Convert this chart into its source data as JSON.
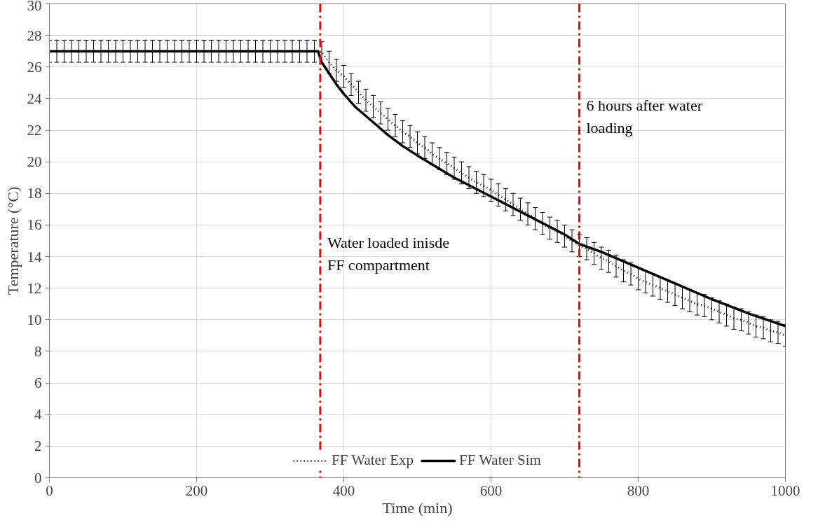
{
  "chart_data": {
    "type": "line",
    "xlabel": "Time (min)",
    "ylabel": "Temperature (°C)",
    "xlim": [
      0,
      1000
    ],
    "xticks": [
      0,
      200,
      400,
      600,
      800,
      1000
    ],
    "ylim": [
      0,
      30
    ],
    "yticks": [
      0,
      2,
      4,
      6,
      8,
      10,
      12,
      14,
      16,
      18,
      20,
      22,
      24,
      26,
      28,
      30
    ],
    "grid": true,
    "legend": "bottom",
    "series": [
      {
        "name": "FF Water Exp",
        "color": "#000000",
        "line_style": "dotted",
        "marker": "none",
        "x": [
          0,
          10,
          20,
          30,
          40,
          50,
          60,
          70,
          80,
          90,
          100,
          110,
          120,
          130,
          140,
          150,
          160,
          170,
          180,
          190,
          200,
          210,
          220,
          230,
          240,
          250,
          260,
          270,
          280,
          290,
          300,
          310,
          320,
          330,
          340,
          350,
          360,
          370,
          380,
          390,
          400,
          410,
          420,
          430,
          440,
          450,
          460,
          470,
          480,
          490,
          500,
          510,
          520,
          530,
          540,
          550,
          560,
          570,
          580,
          590,
          600,
          610,
          620,
          630,
          640,
          650,
          660,
          670,
          680,
          690,
          700,
          710,
          720,
          730,
          740,
          750,
          760,
          770,
          780,
          790,
          800,
          810,
          820,
          830,
          840,
          850,
          860,
          870,
          880,
          890,
          900,
          910,
          920,
          930,
          940,
          950,
          960,
          970,
          980,
          990,
          1000
        ],
        "values": [
          27,
          27,
          27,
          27,
          27,
          27,
          27,
          27,
          27,
          27,
          27,
          27,
          27,
          27,
          27,
          27,
          27,
          27,
          27,
          27,
          27,
          27,
          27,
          27,
          27,
          27,
          27,
          27,
          27,
          27,
          27,
          27,
          27,
          27,
          27,
          27,
          27,
          26.9,
          26.3,
          25.8,
          25.4,
          24.9,
          24.4,
          23.9,
          23.5,
          23.1,
          22.7,
          22.3,
          21.9,
          21.6,
          21.2,
          20.9,
          20.5,
          20.2,
          19.9,
          19.6,
          19.3,
          19.0,
          18.7,
          18.5,
          18.2,
          17.9,
          17.6,
          17.3,
          17.0,
          16.7,
          16.4,
          16.1,
          15.8,
          15.6,
          15.3,
          15.0,
          14.7,
          14.5,
          14.2,
          13.9,
          13.7,
          13.4,
          13.1,
          12.9,
          12.6,
          12.4,
          12.2,
          12.0,
          11.8,
          11.6,
          11.4,
          11.2,
          11.0,
          10.9,
          10.7,
          10.5,
          10.3,
          10.1,
          10.0,
          9.8,
          9.6,
          9.5,
          9.3,
          9.2,
          9.0
        ],
        "errors": [
          0.7,
          0.7,
          0.7,
          0.7,
          0.7,
          0.7,
          0.7,
          0.7,
          0.7,
          0.7,
          0.7,
          0.7,
          0.7,
          0.7,
          0.7,
          0.7,
          0.7,
          0.7,
          0.7,
          0.7,
          0.7,
          0.7,
          0.7,
          0.7,
          0.7,
          0.7,
          0.7,
          0.7,
          0.7,
          0.7,
          0.7,
          0.7,
          0.7,
          0.7,
          0.7,
          0.7,
          0.7,
          0.7,
          0.7,
          0.7,
          0.7,
          0.7,
          0.7,
          0.7,
          0.7,
          0.7,
          0.7,
          0.7,
          0.7,
          0.7,
          0.7,
          0.7,
          0.7,
          0.7,
          0.7,
          0.7,
          0.7,
          0.7,
          0.7,
          0.7,
          0.7,
          0.7,
          0.7,
          0.7,
          0.7,
          0.7,
          0.7,
          0.7,
          0.7,
          0.7,
          0.7,
          0.7,
          0.7,
          0.7,
          0.7,
          0.7,
          0.7,
          0.7,
          0.7,
          0.7,
          0.7,
          0.7,
          0.7,
          0.7,
          0.7,
          0.7,
          0.7,
          0.7,
          0.7,
          0.7,
          0.7,
          0.7,
          0.7,
          0.7,
          0.7,
          0.7,
          0.7,
          0.7,
          0.7,
          0.7,
          0.7
        ]
      },
      {
        "name": "FF Water Sim",
        "color": "#000000",
        "line_style": "solid",
        "marker": "none",
        "x": [
          0,
          365,
          370,
          380,
          390,
          400,
          415,
          430,
          445,
          460,
          480,
          500,
          525,
          550,
          575,
          600,
          650,
          700,
          720,
          750,
          800,
          850,
          900,
          950,
          1000
        ],
        "values": [
          27,
          27,
          26.3,
          25.6,
          24.9,
          24.3,
          23.5,
          22.9,
          22.3,
          21.7,
          21.0,
          20.4,
          19.7,
          19.0,
          18.4,
          17.8,
          16.6,
          15.4,
          14.8,
          14.3,
          13.3,
          12.3,
          11.3,
          10.4,
          9.6
        ]
      }
    ],
    "ref_lines": [
      {
        "axis": "x",
        "value": 368,
        "label": "Water loaded inisde\nFF compartment",
        "color": "#ff0000",
        "line_style": "dashdot"
      },
      {
        "axis": "x",
        "value": 720,
        "label": "6 hours after water\nloading",
        "color": "#ff0000",
        "line_style": "dashdot"
      }
    ]
  }
}
